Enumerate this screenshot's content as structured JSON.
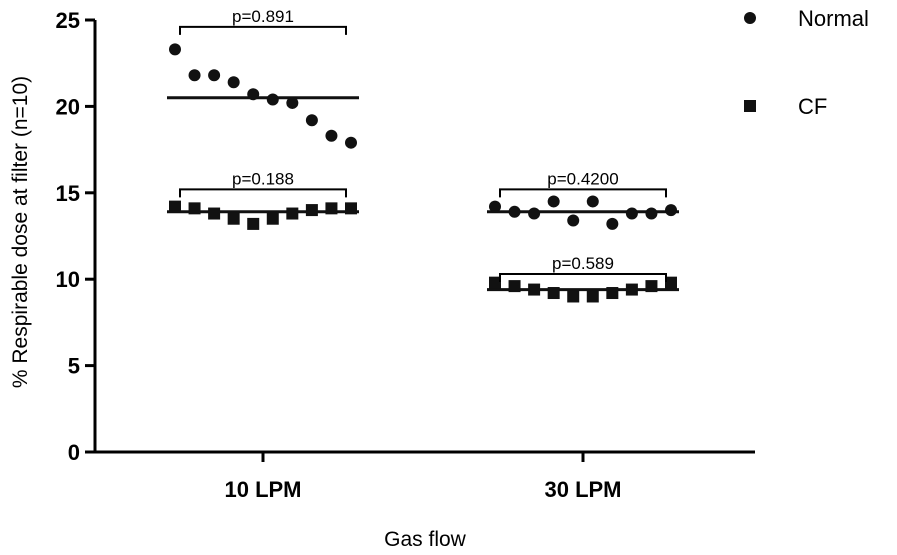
{
  "chart_data": {
    "type": "scatter",
    "xlabel": "Gas flow",
    "ylabel": "% Respirable dose at filter (n=10)",
    "ylim": [
      0,
      25
    ],
    "yticks": [
      0,
      5,
      10,
      15,
      20,
      25
    ],
    "categories": [
      "10 LPM",
      "30 LPM"
    ],
    "grid": false,
    "legend_position": "top-right",
    "colors": {
      "markers": "#111111",
      "lines": "#111111"
    },
    "series": [
      {
        "name": "Normal",
        "marker": "circle",
        "groups": [
          {
            "category": "10 LPM",
            "mean": 20.5,
            "values": [
              23.3,
              21.8,
              21.8,
              21.4,
              20.7,
              20.4,
              20.2,
              19.2,
              18.3,
              17.9
            ]
          },
          {
            "category": "30 LPM",
            "mean": 13.9,
            "values": [
              14.2,
              13.9,
              13.8,
              14.5,
              13.4,
              14.5,
              13.2,
              13.8,
              13.8,
              14.0
            ]
          }
        ]
      },
      {
        "name": "CF",
        "marker": "square",
        "groups": [
          {
            "category": "10 LPM",
            "mean": 13.9,
            "values": [
              14.2,
              14.1,
              13.8,
              13.5,
              13.2,
              13.5,
              13.8,
              14.0,
              14.1,
              14.1
            ]
          },
          {
            "category": "30 LPM",
            "mean": 9.4,
            "values": [
              9.8,
              9.6,
              9.4,
              9.2,
              9.0,
              9.0,
              9.2,
              9.4,
              9.6,
              9.8
            ]
          }
        ]
      }
    ],
    "annotations": [
      {
        "label": "p=0.891",
        "category": "10 LPM",
        "y": 24.6
      },
      {
        "label": "p=0.188",
        "category": "10 LPM",
        "y": 15.2
      },
      {
        "label": "p=0.4200",
        "category": "30 LPM",
        "y": 15.2
      },
      {
        "label": "p=0.589",
        "category": "30 LPM",
        "y": 10.3
      }
    ]
  }
}
